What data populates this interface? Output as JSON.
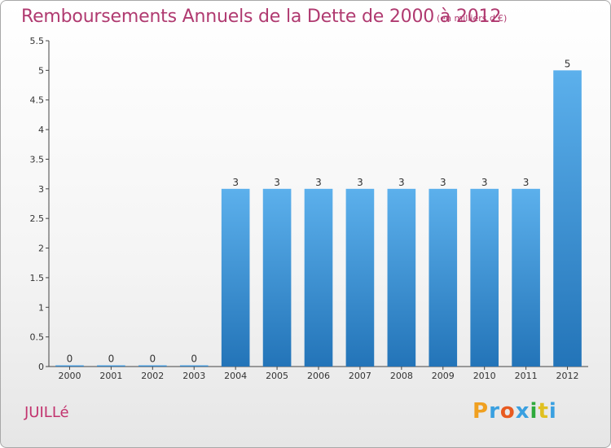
{
  "header": {
    "title": "Remboursements Annuels de la Dette de 2000 à 2012",
    "subtitle": "(en milliers d'€)"
  },
  "commune": "JUILLé",
  "logo": {
    "text": "Proxiti",
    "letters": [
      "P",
      "r",
      "o",
      "x",
      "i",
      "t",
      "i"
    ],
    "colors": [
      "#f0a020",
      "#3aa0e0",
      "#e85a20",
      "#3aa0e0",
      "#2eaa3c",
      "#e0c020",
      "#3aa0e0"
    ]
  },
  "colors": {
    "title": "#b03a70",
    "bar_top": "#5cb0ec",
    "bar_bottom": "#2374b8"
  },
  "chart_data": {
    "type": "bar",
    "categories": [
      "2000",
      "2001",
      "2002",
      "2003",
      "2004",
      "2005",
      "2006",
      "2007",
      "2008",
      "2009",
      "2010",
      "2011",
      "2012"
    ],
    "values": [
      0,
      0,
      0,
      0,
      3,
      3,
      3,
      3,
      3,
      3,
      3,
      3,
      5
    ],
    "data_labels": [
      "0",
      "0",
      "0",
      "0",
      "3",
      "3",
      "3",
      "3",
      "3",
      "3",
      "3",
      "3",
      "5"
    ],
    "title": "Remboursements Annuels de la Dette de 2000 à 2012",
    "subtitle": "(en milliers d'€)",
    "ylim": [
      0,
      5.5
    ],
    "yticks": [
      0,
      0.5,
      1,
      1.5,
      2,
      2.5,
      3,
      3.5,
      4,
      4.5,
      5,
      5.5
    ],
    "ytick_labels": [
      "0",
      "0.5",
      "1",
      "1.5",
      "2",
      "2.5",
      "3",
      "3.5",
      "4",
      "4.5",
      "5",
      "5.5"
    ],
    "grid": false,
    "legend": "none"
  }
}
